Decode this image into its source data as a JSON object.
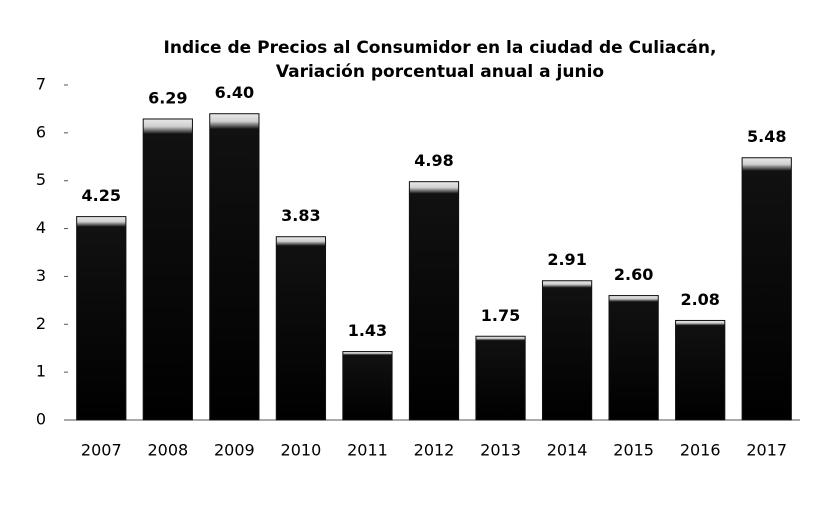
{
  "chart_data": {
    "type": "bar",
    "title": [
      "Indice de Precios al Consumidor en la ciudad de Culiacán,",
      "Variación porcentual anual a junio"
    ],
    "categories": [
      "2007",
      "2008",
      "2009",
      "2010",
      "2011",
      "2012",
      "2013",
      "2014",
      "2015",
      "2016",
      "2017"
    ],
    "values": [
      4.25,
      6.29,
      6.4,
      3.83,
      1.43,
      4.98,
      1.75,
      2.91,
      2.6,
      2.08,
      5.48
    ],
    "value_labels": [
      "4.25",
      "6.29",
      "6.40",
      "3.83",
      "1.43",
      "4.98",
      "1.75",
      "2.91",
      "2.60",
      "2.08",
      "5.48"
    ],
    "color": "#111111",
    "ylim": [
      0,
      7
    ],
    "yticks": [
      0,
      1,
      2,
      3,
      4,
      5,
      6,
      7
    ],
    "grid": false
  }
}
